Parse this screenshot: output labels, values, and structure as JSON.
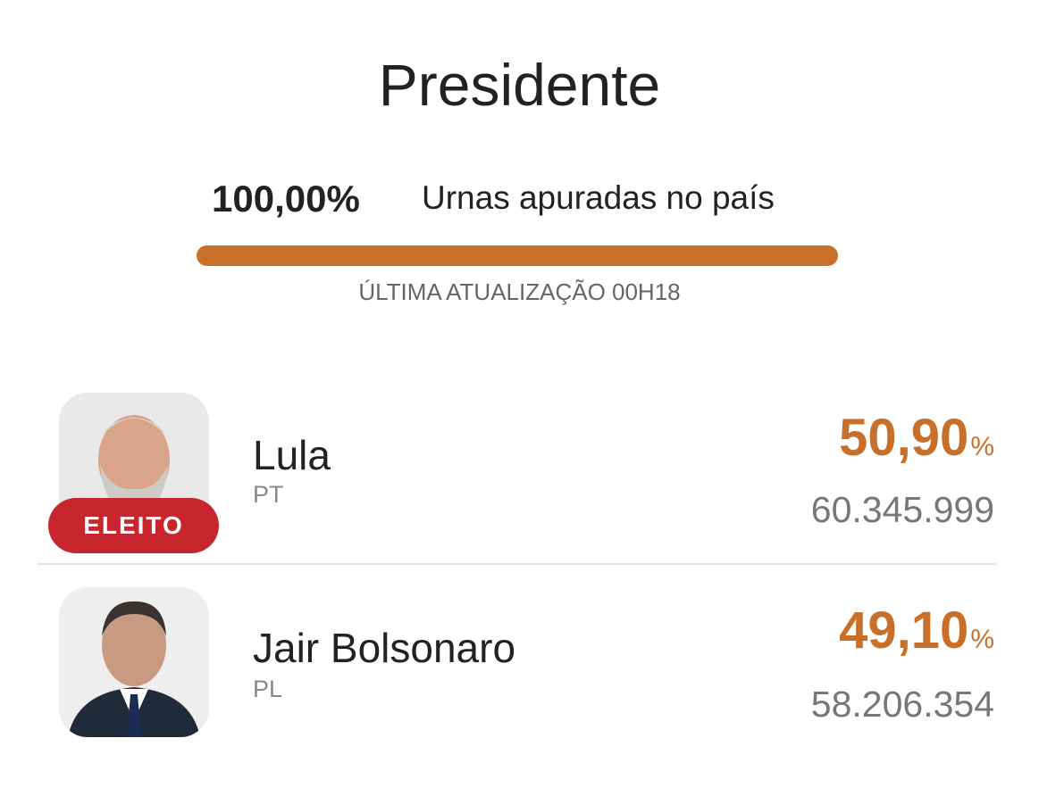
{
  "header": {
    "title": "Presidente"
  },
  "progress": {
    "percent": "100,00%",
    "label": "Urnas apuradas no país",
    "updated": "ÚLTIMA ATUALIZAÇÃO 00H18"
  },
  "candidates": [
    {
      "name": "Lula",
      "party": "PT",
      "percent": "50,90",
      "percent_unit": "%",
      "votes": "60.345.999",
      "badge": "ELEITO"
    },
    {
      "name": "Jair Bolsonaro",
      "party": "PL",
      "percent": "49,10",
      "percent_unit": "%",
      "votes": "58.206.354"
    }
  ]
}
